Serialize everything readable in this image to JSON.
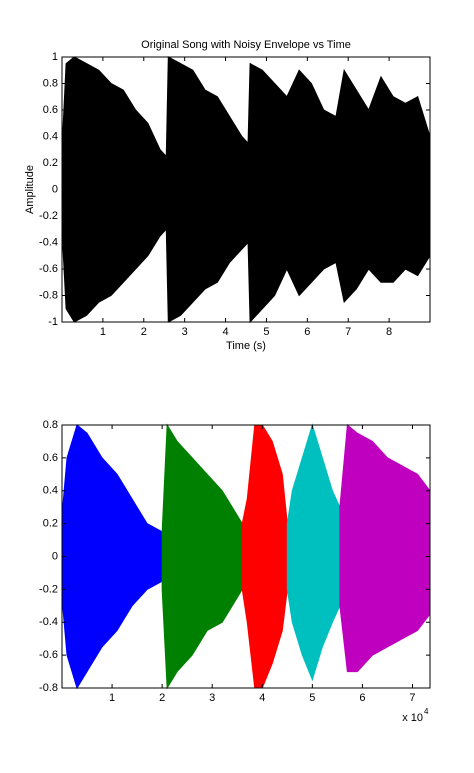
{
  "chart_data": [
    {
      "type": "area",
      "title": "Original Song with Noisy Envelope vs Time",
      "xlabel": "Time (s)",
      "ylabel": "Amplitude",
      "xlim": [
        0,
        9
      ],
      "xticks": [
        1,
        2,
        3,
        4,
        5,
        6,
        7,
        8
      ],
      "ylim": [
        -1,
        1
      ],
      "yticks": [
        -1,
        -0.8,
        -0.6,
        -0.4,
        -0.2,
        0,
        0.2,
        0.4,
        0.6,
        0.8,
        1
      ],
      "series": [
        {
          "color": "#000000",
          "x": [
            0,
            0.1,
            0.3,
            0.6,
            0.9,
            1.2,
            1.5,
            1.8,
            2.1,
            2.4,
            2.55,
            2.6,
            2.9,
            3.2,
            3.5,
            3.8,
            4.1,
            4.4,
            4.55,
            4.6,
            4.9,
            5.2,
            5.5,
            5.8,
            6.1,
            6.4,
            6.7,
            6.9,
            7.2,
            7.5,
            7.8,
            8.1,
            8.4,
            8.7,
            9.0
          ],
          "upper": [
            0.3,
            0.95,
            1,
            0.95,
            0.9,
            0.8,
            0.75,
            0.6,
            0.5,
            0.3,
            0.25,
            1,
            0.95,
            0.9,
            0.75,
            0.7,
            0.55,
            0.4,
            0.35,
            0.95,
            0.9,
            0.8,
            0.7,
            0.9,
            0.8,
            0.6,
            0.55,
            0.9,
            0.75,
            0.6,
            0.85,
            0.7,
            0.65,
            0.7,
            0.4
          ],
          "lower": [
            -0.3,
            -0.9,
            -1,
            -0.95,
            -0.85,
            -0.8,
            -0.7,
            -0.6,
            -0.5,
            -0.35,
            -0.3,
            -1,
            -0.95,
            -0.85,
            -0.75,
            -0.7,
            -0.55,
            -0.45,
            -0.4,
            -1,
            -0.9,
            -0.8,
            -0.6,
            -0.8,
            -0.7,
            -0.6,
            -0.55,
            -0.85,
            -0.75,
            -0.6,
            -0.7,
            -0.7,
            -0.6,
            -0.65,
            -0.5
          ]
        }
      ]
    },
    {
      "type": "area",
      "x_multiplier": "x 10",
      "x_multiplier_exponent": "4",
      "xlim": [
        0,
        73500
      ],
      "xticks": [
        {
          "value": 10000,
          "label": "1"
        },
        {
          "value": 20000,
          "label": "2"
        },
        {
          "value": 30000,
          "label": "3"
        },
        {
          "value": 40000,
          "label": "4"
        },
        {
          "value": 50000,
          "label": "5"
        },
        {
          "value": 60000,
          "label": "6"
        },
        {
          "value": 70000,
          "label": "7"
        }
      ],
      "ylim": [
        -0.8,
        0.8
      ],
      "yticks": [
        -0.8,
        -0.6,
        -0.4,
        -0.2,
        0,
        0.2,
        0.4,
        0.6,
        0.8
      ],
      "series": [
        {
          "color": "#0000ff",
          "x": [
            0,
            1000,
            3000,
            5000,
            8000,
            11000,
            14000,
            17000,
            20000
          ],
          "upper": [
            0.25,
            0.6,
            0.8,
            0.75,
            0.6,
            0.5,
            0.35,
            0.2,
            0.15
          ],
          "lower": [
            -0.25,
            -0.6,
            -0.8,
            -0.7,
            -0.55,
            -0.45,
            -0.3,
            -0.2,
            -0.15
          ]
        },
        {
          "color": "#008000",
          "x": [
            20000,
            21000,
            23000,
            26000,
            29000,
            32000,
            34000,
            36000
          ],
          "upper": [
            0.15,
            0.8,
            0.7,
            0.6,
            0.5,
            0.4,
            0.3,
            0.2
          ],
          "lower": [
            -0.2,
            -0.8,
            -0.7,
            -0.6,
            -0.45,
            -0.4,
            -0.3,
            -0.2
          ]
        },
        {
          "color": "#ff0000",
          "x": [
            36000,
            37000,
            38500,
            40000,
            42000,
            44000,
            45000
          ],
          "upper": [
            0.2,
            0.35,
            0.8,
            0.8,
            0.7,
            0.5,
            0.2
          ],
          "lower": [
            -0.2,
            -0.4,
            -0.8,
            -0.8,
            -0.65,
            -0.45,
            -0.2
          ]
        },
        {
          "color": "#00bfbf",
          "x": [
            45000,
            46000,
            48000,
            50000,
            52000,
            54000,
            55500
          ],
          "upper": [
            0.2,
            0.4,
            0.6,
            0.8,
            0.6,
            0.4,
            0.3
          ],
          "lower": [
            -0.2,
            -0.4,
            -0.6,
            -0.75,
            -0.55,
            -0.4,
            -0.3
          ]
        },
        {
          "color": "#bf00bf",
          "x": [
            55500,
            57000,
            59000,
            62000,
            65000,
            68000,
            71000,
            73500
          ],
          "upper": [
            0.3,
            0.8,
            0.75,
            0.7,
            0.6,
            0.55,
            0.5,
            0.4
          ],
          "lower": [
            -0.3,
            -0.7,
            -0.7,
            -0.6,
            -0.55,
            -0.5,
            -0.45,
            -0.35
          ]
        }
      ]
    }
  ]
}
